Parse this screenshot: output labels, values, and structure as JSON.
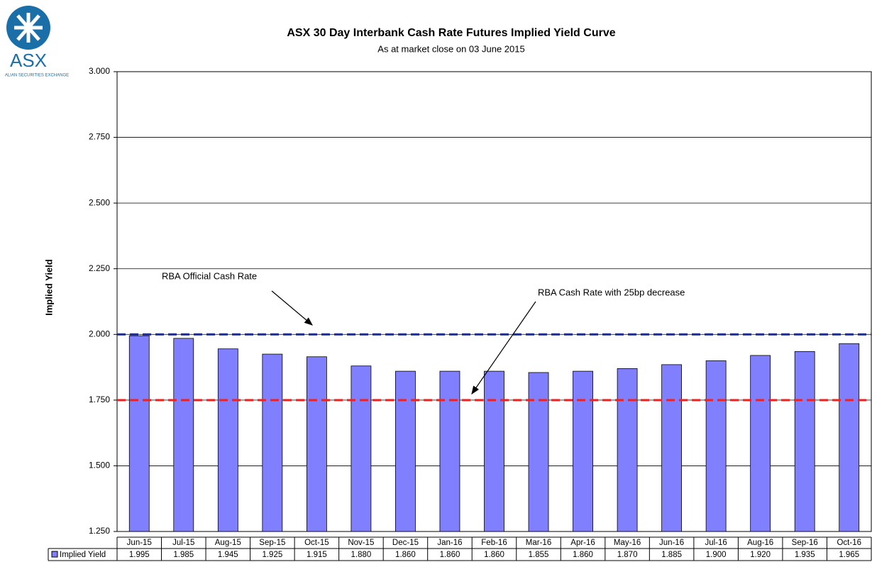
{
  "logo": {
    "name": "ASX",
    "tagline": "ALIAN SECURITIES EXCHANGE"
  },
  "chart_data": {
    "type": "bar",
    "title": "ASX 30 Day Interbank Cash Rate Futures Implied Yield Curve",
    "subtitle": "As at market close on 03 June 2015",
    "y_label": "Implied Yield",
    "categories": [
      "Jun-15",
      "Jul-15",
      "Aug-15",
      "Sep-15",
      "Oct-15",
      "Nov-15",
      "Dec-15",
      "Jan-16",
      "Feb-16",
      "Mar-16",
      "Apr-16",
      "May-16",
      "Jun-16",
      "Jul-16",
      "Aug-16",
      "Sep-16",
      "Oct-16"
    ],
    "series": [
      {
        "name": "Implied Yield",
        "color": "#8080ff",
        "values": [
          1.995,
          1.985,
          1.945,
          1.925,
          1.915,
          1.88,
          1.86,
          1.86,
          1.86,
          1.855,
          1.86,
          1.87,
          1.885,
          1.9,
          1.92,
          1.935,
          1.965
        ],
        "value_labels": [
          "1.995",
          "1.985",
          "1.945",
          "1.925",
          "1.915",
          "1.880",
          "1.860",
          "1.860",
          "1.860",
          "1.855",
          "1.860",
          "1.870",
          "1.885",
          "1.900",
          "1.920",
          "1.935",
          "1.965"
        ]
      }
    ],
    "ylim": [
      1.25,
      3.0
    ],
    "yticks": [
      {
        "value": 1.25,
        "label": "1.250"
      },
      {
        "value": 1.5,
        "label": "1.500"
      },
      {
        "value": 1.75,
        "label": "1.750"
      },
      {
        "value": 2.0,
        "label": "2.000"
      },
      {
        "value": 2.25,
        "label": "2.250"
      },
      {
        "value": 2.5,
        "label": "2.500"
      },
      {
        "value": 2.75,
        "label": "2.750"
      },
      {
        "value": 3.0,
        "label": "3.000"
      }
    ],
    "grid": true,
    "reference_lines": [
      {
        "label": "RBA Official Cash Rate",
        "value": 2.0,
        "color": "#1c2a8a"
      },
      {
        "label": "RBA Cash Rate with 25bp decrease",
        "value": 1.75,
        "color": "#ee2222"
      }
    ]
  }
}
